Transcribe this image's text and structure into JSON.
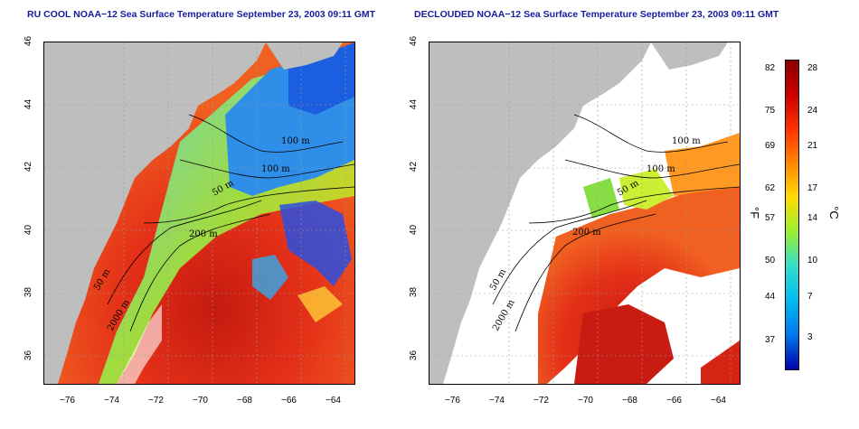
{
  "panels": [
    {
      "title": "RU COOL NOAA−12 Sea Surface Temperature September 23, 2003 09:11 GMT",
      "contours": [
        "100 m",
        "100 m",
        "50 m",
        "200 m",
        "50 m",
        "2000 m"
      ]
    },
    {
      "title": "DECLOUDED NOAA−12 Sea Surface Temperature September 23, 2003 09:11 GMT",
      "contours": [
        "100 m",
        "100 m",
        "50 m",
        "200 m",
        "50 m",
        "2000 m"
      ]
    }
  ],
  "axes": {
    "x_ticks": [
      "−76",
      "−74",
      "−72",
      "−70",
      "−68",
      "−66",
      "−64"
    ],
    "y_ticks": [
      "46",
      "44",
      "42",
      "40",
      "38",
      "36"
    ]
  },
  "colorbar": {
    "fahrenheit_ticks": [
      "82",
      "75",
      "69",
      "62",
      "57",
      "50",
      "44",
      "37"
    ],
    "celsius_ticks": [
      "28",
      "24",
      "21",
      "17",
      "14",
      "10",
      "7",
      "3"
    ],
    "unit_f": "°F",
    "unit_c": "°C",
    "colors": [
      "#8b0000",
      "#cc0000",
      "#ff3300",
      "#ff8800",
      "#ffdd00",
      "#99ee33",
      "#33ddcc",
      "#00bbee",
      "#0077ee",
      "#0000aa"
    ]
  },
  "colors": {
    "land": "#bebebe",
    "title": "#1a1aa0",
    "warm": "#e52a12",
    "cloud_blue": "#2255dd"
  }
}
